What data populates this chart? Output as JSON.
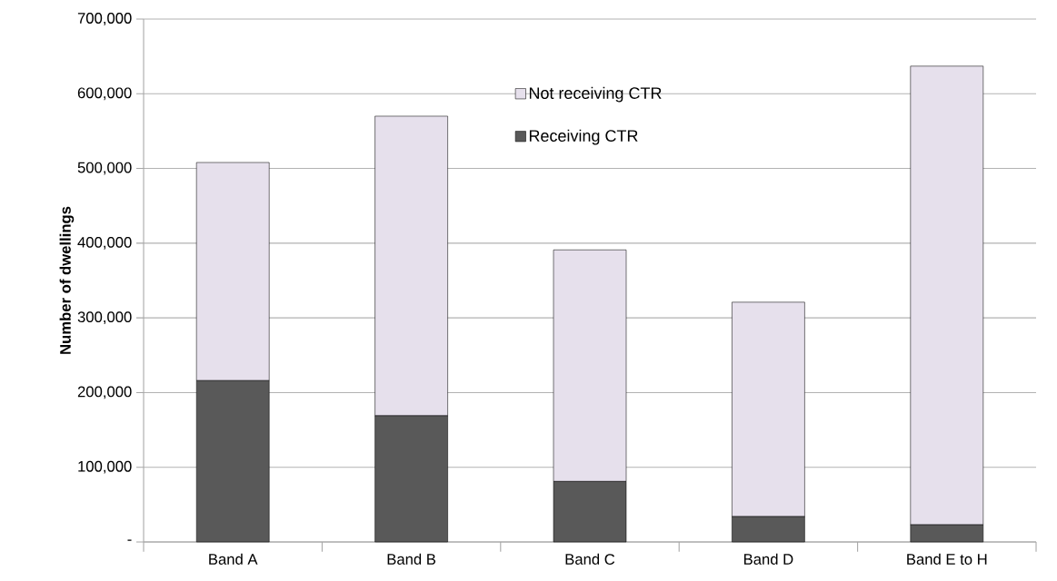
{
  "chart_data": {
    "type": "bar",
    "stacked": true,
    "ylabel": "Number of dwellings",
    "categories": [
      "Band A",
      "Band B",
      "Band C",
      "Band D",
      "Band E to H"
    ],
    "series": [
      {
        "name": "Receiving CTR",
        "color": "#595959",
        "values": [
          216000,
          169000,
          81000,
          34000,
          23000
        ]
      },
      {
        "name": "Not receiving CTR",
        "color": "#e6e0ec",
        "values": [
          292000,
          401000,
          310000,
          287000,
          614000
        ]
      }
    ],
    "ylim": [
      0,
      700000
    ],
    "yticks": [
      {
        "value": 0,
        "label": "-"
      },
      {
        "value": 100000,
        "label": "100,000"
      },
      {
        "value": 200000,
        "label": "200,000"
      },
      {
        "value": 300000,
        "label": "300,000"
      },
      {
        "value": 400000,
        "label": "400,000"
      },
      {
        "value": 500000,
        "label": "500,000"
      },
      {
        "value": 600000,
        "label": "600,000"
      },
      {
        "value": 700000,
        "label": "700,000"
      }
    ],
    "grid": "y",
    "legend": "top"
  }
}
